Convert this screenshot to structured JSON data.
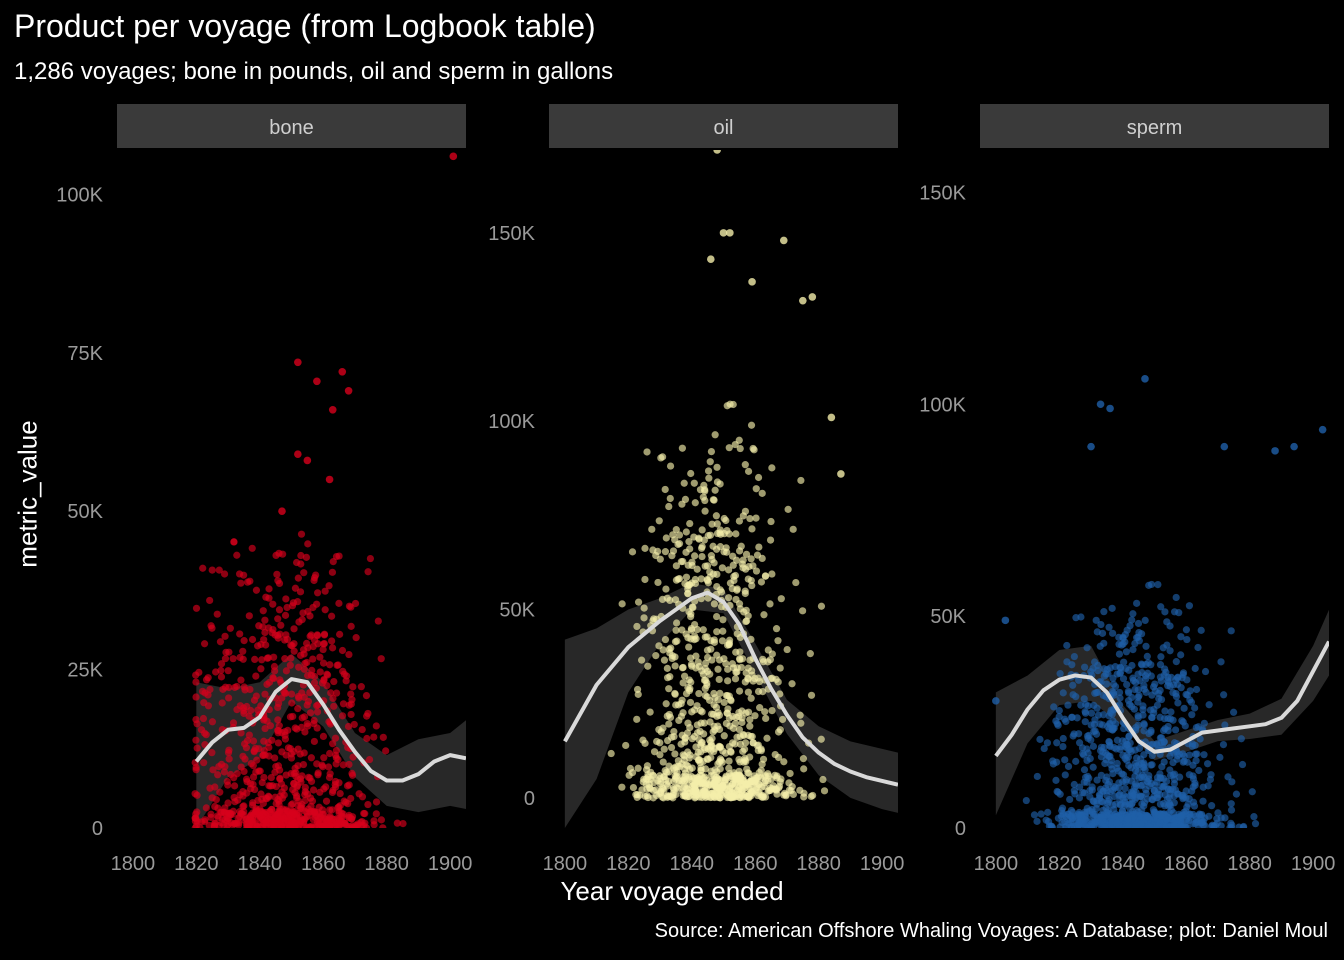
{
  "title": "Product per voyage (from Logbook table)",
  "subtitle": "1,286 voyages; bone in pounds, oil and sperm in gallons",
  "caption": "Source: American Offshore Whaling Voyages: A Database; plot: Daniel Moul",
  "colors": {
    "background": "#000000",
    "strip": "#3a3a3a",
    "ribbon": "#2a2a2a",
    "smooth_line": "#d9d9d9",
    "tick_text": "#9a9a9a"
  },
  "chart_data": {
    "type": "scatter",
    "title": "Product per voyage (from Logbook table)",
    "subtitle": "1,286 voyages; bone in pounds, oil and sperm in gallons",
    "xlabel": "Year voyage ended",
    "ylabel": "metric_value",
    "grid": false,
    "legend": "none",
    "n_voyages": 1286,
    "xlim": [
      1795,
      1905
    ],
    "x_ticks": [
      1800,
      1820,
      1840,
      1860,
      1880,
      1900
    ],
    "facets": [
      {
        "name": "bone",
        "color": "#d7001c",
        "ylim": [
          0,
          107000
        ],
        "y_ticks": [
          0,
          25000,
          50000,
          75000,
          100000
        ],
        "y_tick_labels": [
          "0",
          "25K",
          "50K",
          "75K",
          "100K"
        ],
        "x_range": [
          1820,
          1905
        ],
        "n_points": 900,
        "point_density": {
          "peak_year": 1848,
          "spread": 14,
          "typical_max": 45000
        },
        "smooth": [
          [
            1820,
            10500
          ],
          [
            1825,
            13500
          ],
          [
            1830,
            15500
          ],
          [
            1835,
            15800
          ],
          [
            1840,
            17500
          ],
          [
            1845,
            21500
          ],
          [
            1850,
            23500
          ],
          [
            1855,
            23000
          ],
          [
            1860,
            19500
          ],
          [
            1865,
            15500
          ],
          [
            1870,
            12000
          ],
          [
            1875,
            9000
          ],
          [
            1880,
            7500
          ],
          [
            1885,
            7500
          ],
          [
            1890,
            8500
          ],
          [
            1895,
            10500
          ],
          [
            1900,
            11500
          ],
          [
            1905,
            11000
          ]
        ],
        "band": [
          [
            1820,
            0,
            23000
          ],
          [
            1830,
            8000,
            22000
          ],
          [
            1840,
            11000,
            23000
          ],
          [
            1850,
            20000,
            27500
          ],
          [
            1860,
            16000,
            23000
          ],
          [
            1870,
            8000,
            15000
          ],
          [
            1880,
            3500,
            11500
          ],
          [
            1890,
            2500,
            14000
          ],
          [
            1900,
            3500,
            15000
          ],
          [
            1905,
            3000,
            17000
          ]
        ],
        "notable_points": [
          [
            1901,
            106000
          ],
          [
            1852,
            73500
          ],
          [
            1866,
            72000
          ],
          [
            1858,
            70500
          ],
          [
            1868,
            69000
          ],
          [
            1863,
            66000
          ],
          [
            1852,
            59000
          ],
          [
            1855,
            58000
          ],
          [
            1847,
            50000
          ],
          [
            1862,
            55000
          ]
        ]
      },
      {
        "name": "oil",
        "color": "#f4eeaa",
        "ylim": [
          -8000,
          172000
        ],
        "y_ticks": [
          0,
          50000,
          100000,
          150000
        ],
        "y_tick_labels": [
          "0",
          "50K",
          "100K",
          "150K"
        ],
        "x_range": [
          1800,
          1905
        ],
        "n_points": 1000,
        "point_density": {
          "peak_year": 1848,
          "spread": 12,
          "typical_max": 100000
        },
        "smooth": [
          [
            1800,
            15000
          ],
          [
            1810,
            30000
          ],
          [
            1820,
            40000
          ],
          [
            1830,
            47000
          ],
          [
            1840,
            53000
          ],
          [
            1845,
            54500
          ],
          [
            1850,
            52000
          ],
          [
            1855,
            46000
          ],
          [
            1860,
            37000
          ],
          [
            1865,
            29000
          ],
          [
            1870,
            22000
          ],
          [
            1875,
            16000
          ],
          [
            1880,
            12000
          ],
          [
            1885,
            9000
          ],
          [
            1890,
            7000
          ],
          [
            1895,
            5500
          ],
          [
            1900,
            4500
          ],
          [
            1905,
            3500
          ]
        ],
        "band": [
          [
            1800,
            -8000,
            42000
          ],
          [
            1810,
            5000,
            45000
          ],
          [
            1820,
            28000,
            50000
          ],
          [
            1830,
            41000,
            53000
          ],
          [
            1840,
            50000,
            57000
          ],
          [
            1850,
            49000,
            55500
          ],
          [
            1860,
            33000,
            41000
          ],
          [
            1870,
            17000,
            26000
          ],
          [
            1880,
            6000,
            19000
          ],
          [
            1890,
            0,
            15000
          ],
          [
            1900,
            -3000,
            13000
          ],
          [
            1905,
            -4000,
            12000
          ]
        ],
        "notable_points": [
          [
            1848,
            172000
          ],
          [
            1850,
            150000
          ],
          [
            1852,
            150000
          ],
          [
            1869,
            148000
          ],
          [
            1846,
            143000
          ],
          [
            1878,
            133000
          ],
          [
            1875,
            132000
          ],
          [
            1859,
            137000
          ],
          [
            1884,
            101000
          ],
          [
            1887,
            86000
          ]
        ]
      },
      {
        "name": "sperm",
        "color": "#1f5fa8",
        "ylim": [
          0,
          160000
        ],
        "y_ticks": [
          0,
          50000,
          100000,
          150000
        ],
        "y_tick_labels": [
          "0",
          "50K",
          "100K",
          "150K"
        ],
        "x_range": [
          1800,
          1905
        ],
        "n_points": 1100,
        "point_density": {
          "peak_year": 1845,
          "spread": 13,
          "typical_max": 55000
        },
        "smooth": [
          [
            1800,
            17000
          ],
          [
            1805,
            22000
          ],
          [
            1810,
            28000
          ],
          [
            1815,
            32500
          ],
          [
            1820,
            35000
          ],
          [
            1825,
            36000
          ],
          [
            1830,
            35500
          ],
          [
            1835,
            32000
          ],
          [
            1840,
            26000
          ],
          [
            1845,
            20500
          ],
          [
            1850,
            18000
          ],
          [
            1855,
            18500
          ],
          [
            1860,
            20500
          ],
          [
            1865,
            22500
          ],
          [
            1870,
            23000
          ],
          [
            1875,
            23500
          ],
          [
            1880,
            24000
          ],
          [
            1885,
            24500
          ],
          [
            1890,
            26000
          ],
          [
            1895,
            30000
          ],
          [
            1900,
            37000
          ],
          [
            1905,
            44000
          ]
        ],
        "band": [
          [
            1800,
            3000,
            32000
          ],
          [
            1810,
            20000,
            36000
          ],
          [
            1820,
            29000,
            42000
          ],
          [
            1830,
            30000,
            43000
          ],
          [
            1840,
            24000,
            29000
          ],
          [
            1850,
            16000,
            20500
          ],
          [
            1860,
            18000,
            23000
          ],
          [
            1870,
            20500,
            25500
          ],
          [
            1880,
            21000,
            27000
          ],
          [
            1890,
            22000,
            30500
          ],
          [
            1900,
            30000,
            43000
          ],
          [
            1905,
            36000,
            51500
          ]
        ],
        "notable_points": [
          [
            1847,
            106000
          ],
          [
            1836,
            99000
          ],
          [
            1833,
            100000
          ],
          [
            1830,
            90000
          ],
          [
            1872,
            90000
          ],
          [
            1888,
            89000
          ],
          [
            1903,
            94000
          ],
          [
            1894,
            90000
          ],
          [
            1803,
            49000
          ],
          [
            1800,
            30000
          ]
        ]
      }
    ]
  }
}
